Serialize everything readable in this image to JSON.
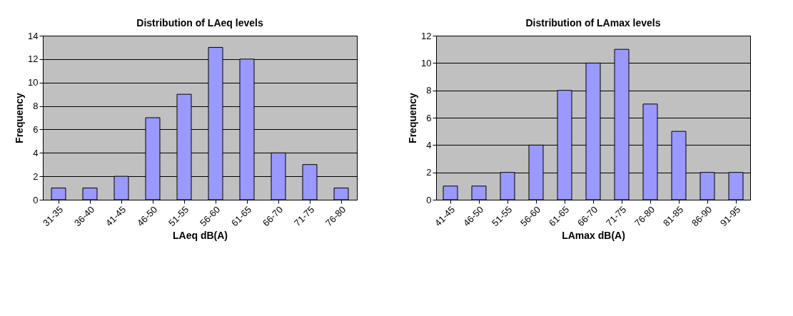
{
  "chart_data": [
    {
      "type": "bar",
      "title": "Distribution of LAeq levels",
      "xlabel": "LAeq dB(A)",
      "ylabel": "Frequency",
      "categories": [
        "31-35",
        "36-40",
        "41-45",
        "46-50",
        "51-55",
        "56-60",
        "61-65",
        "66-70",
        "71-75",
        "76-80"
      ],
      "values": [
        1,
        1,
        2,
        7,
        9,
        13,
        12,
        4,
        3,
        1
      ],
      "color": "#9999ff",
      "ylim": [
        0,
        14
      ],
      "yticks": [
        0,
        2,
        4,
        6,
        8,
        10,
        12,
        14
      ],
      "grid": "y"
    },
    {
      "type": "bar",
      "title": "Distribution of LAmax levels",
      "xlabel": "LAmax dB(A)",
      "ylabel": "Frequency",
      "categories": [
        "41-45",
        "46-50",
        "51-55",
        "56-60",
        "61-65",
        "66-70",
        "71-75",
        "76-80",
        "81-85",
        "86-90",
        "91-95"
      ],
      "values": [
        1,
        1,
        2,
        4,
        8,
        10,
        11,
        7,
        5,
        2,
        2
      ],
      "color": "#9999ff",
      "ylim": [
        0,
        12
      ],
      "yticks": [
        0,
        2,
        4,
        6,
        8,
        10,
        12
      ],
      "grid": "y"
    }
  ]
}
